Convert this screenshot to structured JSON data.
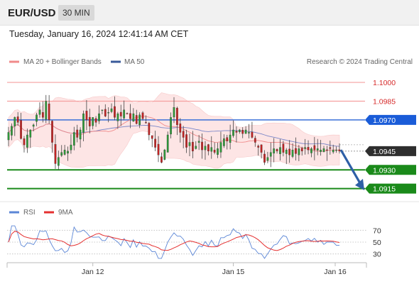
{
  "header": {
    "symbol": "EUR/USD",
    "timeframe": "30 MIN"
  },
  "datetime": "Tuesday, January 16, 2024 12:41:14 AM CET",
  "legend": {
    "ma_bollinger": {
      "label": "MA 20 + Bollinger Bands",
      "color": "#f08a8a"
    },
    "ma50": {
      "label": "MA 50",
      "color": "#3a5a9a"
    },
    "copyright": "Research © 2024 Trading Central"
  },
  "chart_data": {
    "type": "candlestick",
    "ylim": [
      1.0908,
      1.1008
    ],
    "x_ticks": [
      {
        "label": "Jan 12",
        "index": 27
      },
      {
        "label": "Jan 15",
        "index": 72
      },
      {
        "label": "Jan 16",
        "index": 118
      }
    ],
    "levels": [
      {
        "value": "1.1000",
        "kind": "resistance",
        "color": "#f08a8a"
      },
      {
        "value": "1.0985",
        "kind": "resistance",
        "color": "#f08a8a"
      },
      {
        "value": "1.0970",
        "kind": "pivot",
        "color": "#1a5cd8"
      },
      {
        "value": "1.0945",
        "kind": "last",
        "color": "#333333"
      },
      {
        "value": "1.0930",
        "kind": "support",
        "color": "#1a8a1a"
      },
      {
        "value": "1.0915",
        "kind": "support",
        "color": "#1a8a1a"
      }
    ],
    "forecast_arrow": {
      "from": 1.0946,
      "to": 1.0916
    },
    "close": [
      1.096,
      1.0965,
      1.0972,
      1.0968,
      1.0955,
      1.095,
      1.0958,
      1.0962,
      1.0966,
      1.0974,
      1.0978,
      1.0972,
      1.0985,
      1.097,
      1.0952,
      1.0935,
      1.094,
      1.0944,
      1.0946,
      1.0945,
      1.095,
      1.096,
      1.0956,
      1.0962,
      1.0975,
      1.097,
      1.0965,
      1.0972,
      1.0968,
      1.0975,
      1.0978,
      1.0973,
      1.0976,
      1.0979,
      1.0972,
      1.0975,
      1.0973,
      1.0978,
      1.0975,
      1.0971,
      1.0975,
      1.0967,
      1.0974,
      1.0971,
      1.0968,
      1.0958,
      1.0955,
      1.0948,
      1.0942,
      1.0936,
      1.0946,
      1.0958,
      1.0972,
      1.098,
      1.0966,
      1.096,
      1.0956,
      1.0948,
      1.0952,
      1.0945,
      1.0949,
      1.0953,
      1.0946,
      1.0949,
      1.0945,
      1.0948,
      1.0944,
      1.0947,
      1.0952,
      1.0955,
      1.0953,
      1.0958,
      1.0962,
      1.096,
      1.0962,
      1.0959,
      1.0962,
      1.096,
      1.0956,
      1.0952,
      1.0948,
      1.0944,
      1.0936,
      1.094,
      1.0944,
      1.0947,
      1.0945,
      1.0948,
      1.0944,
      1.0946,
      1.0942,
      1.0946,
      1.0943,
      1.0947,
      1.0945,
      1.0948,
      1.0946,
      1.0947,
      1.0946,
      1.0947,
      1.0946,
      1.0947,
      1.0946,
      1.0947,
      1.0946,
      1.0946,
      1.0945
    ],
    "rsi": {
      "levels": [
        70,
        50,
        30
      ],
      "ylim": [
        20,
        80
      ],
      "series": [
        {
          "name": "RSI",
          "color": "#5b86d6"
        },
        {
          "name": "9MA",
          "color": "#e53030"
        }
      ]
    }
  }
}
